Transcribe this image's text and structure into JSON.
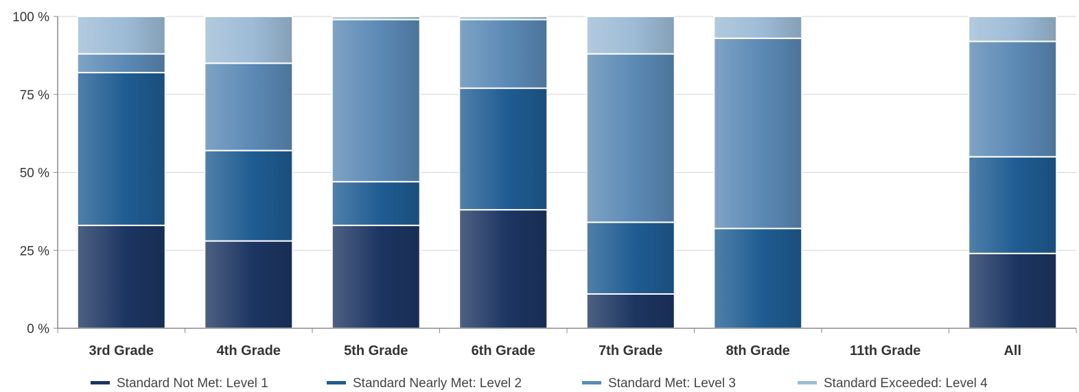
{
  "chart_data": {
    "type": "bar",
    "stacked": true,
    "categories": [
      "3rd Grade",
      "4th Grade",
      "5th Grade",
      "6th Grade",
      "7th Grade",
      "8th Grade",
      "11th Grade",
      "All"
    ],
    "series": [
      {
        "name": "Standard Not Met: Level 1",
        "color": "#1c3561",
        "values": [
          33,
          28,
          33,
          38,
          11,
          0,
          0,
          24
        ]
      },
      {
        "name": "Standard Nearly Met: Level 2",
        "color": "#1f5c92",
        "values": [
          49,
          29,
          14,
          39,
          23,
          32,
          0,
          31
        ]
      },
      {
        "name": "Standard Met: Level 3",
        "color": "#5b89b5",
        "values": [
          6,
          28,
          52,
          22,
          54,
          61,
          0,
          37
        ]
      },
      {
        "name": "Standard Exceeded: Level 4",
        "color": "#9dbbd6",
        "values": [
          12,
          15,
          1,
          1,
          12,
          7,
          0,
          8
        ]
      }
    ],
    "yticks": [
      "0 %",
      "25 %",
      "50 %",
      "75 %",
      "100 %"
    ],
    "ylim": [
      0,
      100
    ],
    "grid": true,
    "legend": "bottom"
  }
}
